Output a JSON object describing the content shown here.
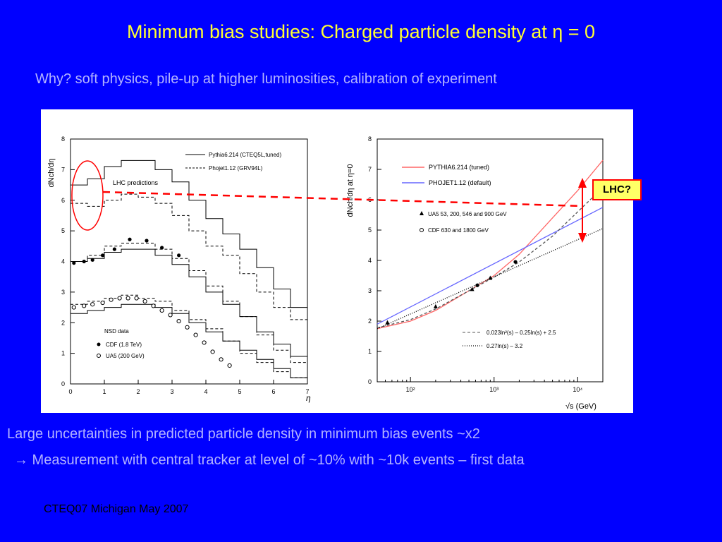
{
  "slide": {
    "title": "Minimum bias studies: Charged particle density at η = 0",
    "subtitle": "Why? soft physics, pile-up at higher luminosities, calibration of experiment",
    "bullet1": "Large uncertainties in predicted particle density in minimum bias events ~x2",
    "bullet2": "→ Measurement with central tracker at level of ~10% with ~10k events – first data",
    "footer": "CTEQ07 Michigan May 2007",
    "lhc_label": "LHC?",
    "colors": {
      "background": "#0000ff",
      "title": "#ffff33",
      "text": "#b3b3ff",
      "annotation": "#ff0000",
      "lhc_box": "#ffff66"
    }
  },
  "chart_data": [
    {
      "type": "line",
      "ylabel": "dNch/dη",
      "xlabel": "η",
      "xlim": [
        0,
        7
      ],
      "ylim": [
        0,
        8
      ],
      "xticks": [
        "0",
        "1",
        "2",
        "3",
        "4",
        "5",
        "6",
        "7"
      ],
      "yticks": [
        "0",
        "1",
        "2",
        "3",
        "4",
        "5",
        "6",
        "7",
        "8"
      ],
      "annotation": "LHC predictions",
      "legend_top": [
        "Pythia6.214 (CTEQ5L,tuned)",
        "Phojet1.12  (GRV94L)"
      ],
      "legend_bottom_title": "NSD data",
      "legend_bottom": [
        "CDF (1.8 TeV)",
        "UA5 (200 GeV)"
      ],
      "series": [
        {
          "name": "Pythia6.214 (CTEQ5L,tuned)",
          "energy": "LHC",
          "style": "solid",
          "x": [
            0,
            0.5,
            1,
            1.5,
            2,
            2.5,
            3,
            3.5,
            4,
            4.5,
            5,
            5.5,
            6,
            6.5,
            7
          ],
          "y": [
            6.5,
            6.7,
            7.1,
            7.3,
            7.3,
            7.0,
            6.6,
            6.0,
            5.4,
            4.9,
            4.4,
            3.8,
            3.1,
            2.5,
            2.3
          ]
        },
        {
          "name": "Phojet1.12  (GRV94L)",
          "energy": "LHC",
          "style": "dashed",
          "x": [
            0,
            0.5,
            1,
            1.5,
            2,
            2.5,
            3,
            3.5,
            4,
            4.5,
            5,
            5.5,
            6,
            6.5,
            7
          ],
          "y": [
            5.9,
            5.8,
            6.0,
            6.2,
            6.1,
            5.9,
            5.5,
            5.0,
            4.5,
            4.2,
            3.6,
            3.0,
            2.5,
            2.1,
            1.8
          ]
        },
        {
          "name": "Pythia6.214 (CTEQ5L,tuned)",
          "energy": "1.8 TeV",
          "style": "solid",
          "x": [
            0,
            0.5,
            1,
            1.5,
            2,
            2.5,
            3,
            3.5,
            4,
            4.5,
            5,
            5.5,
            6,
            6.5,
            7
          ],
          "y": [
            4.0,
            4.1,
            4.3,
            4.4,
            4.4,
            4.2,
            3.9,
            3.5,
            3.0,
            2.6,
            2.2,
            1.7,
            1.3,
            0.9,
            0.5
          ]
        },
        {
          "name": "Phojet1.12  (GRV94L)",
          "energy": "1.8 TeV",
          "style": "dashed",
          "x": [
            0,
            0.5,
            1,
            1.5,
            2,
            2.5,
            3,
            3.5,
            4,
            4.5,
            5,
            5.5,
            6,
            6.5,
            7
          ],
          "y": [
            4.0,
            4.2,
            4.5,
            4.6,
            4.6,
            4.4,
            4.1,
            3.7,
            3.2,
            2.7,
            2.2,
            1.6,
            1.1,
            0.7,
            0.4
          ]
        },
        {
          "name": "Pythia6.214 (CTEQ5L,tuned)",
          "energy": "200 GeV",
          "style": "solid",
          "x": [
            0,
            0.5,
            1,
            1.5,
            2,
            2.5,
            3,
            3.5,
            4,
            4.5,
            5,
            5.5,
            6,
            6.5,
            7
          ],
          "y": [
            2.3,
            2.4,
            2.5,
            2.6,
            2.6,
            2.5,
            2.3,
            2.0,
            1.7,
            1.4,
            1.1,
            0.8,
            0.5,
            0.2,
            0.05
          ]
        },
        {
          "name": "Phojet1.12  (GRV94L)",
          "energy": "200 GeV",
          "style": "dashed",
          "x": [
            0,
            0.5,
            1,
            1.5,
            2,
            2.5,
            3,
            3.5,
            4,
            4.5,
            5,
            5.5,
            6,
            6.5,
            7
          ],
          "y": [
            2.6,
            2.7,
            2.8,
            2.9,
            2.8,
            2.7,
            2.4,
            2.1,
            1.8,
            1.4,
            1.0,
            0.7,
            0.4,
            0.2,
            0.05
          ]
        },
        {
          "name": "CDF (1.8 TeV)",
          "style": "marker-filled",
          "x": [
            0.1,
            0.4,
            0.65,
            0.95,
            1.3,
            1.75,
            2.25,
            2.7,
            3.2
          ],
          "y": [
            3.95,
            4.0,
            4.05,
            4.2,
            4.4,
            4.72,
            4.68,
            4.45,
            4.2
          ]
        },
        {
          "name": "UA5 (200 GeV)",
          "style": "marker-open",
          "x": [
            0.1,
            0.4,
            0.65,
            0.95,
            1.2,
            1.45,
            1.7,
            1.95,
            2.2,
            2.45,
            2.7,
            2.95,
            3.2,
            3.45,
            3.7,
            3.95,
            4.2,
            4.45,
            4.7
          ],
          "y": [
            2.5,
            2.55,
            2.6,
            2.65,
            2.75,
            2.8,
            2.8,
            2.8,
            2.7,
            2.55,
            2.4,
            2.25,
            2.05,
            1.85,
            1.6,
            1.35,
            1.05,
            0.8,
            0.6
          ]
        }
      ]
    },
    {
      "type": "line",
      "ylabel": "dNch/dη  at  η=0",
      "xlabel": "√s (GeV)",
      "xscale": "log",
      "xlim": [
        40,
        20000
      ],
      "ylim": [
        0,
        8
      ],
      "xticks": [
        "10²",
        "10³",
        "10⁴"
      ],
      "xtick_values": [
        100,
        1000,
        10000
      ],
      "yticks": [
        "0",
        "1",
        "2",
        "3",
        "4",
        "5",
        "6",
        "7",
        "8"
      ],
      "legend_top": [
        "PYTHIA6.214 (tuned)",
        "PHOJET1.12 (default)"
      ],
      "legend_middle": [
        "UA5 53, 200, 546 and 900 GeV",
        "CDF 630 and 1800 GeV"
      ],
      "legend_bottom": [
        "0.023ln²(s) – 0.25ln(s) + 2.5",
        "0.27ln(s) – 3.2"
      ],
      "series": [
        {
          "name": "PYTHIA6.214 (tuned)",
          "color": "#ff6666",
          "style": "solid",
          "x": [
            40,
            100,
            200,
            500,
            1000,
            2000,
            5000,
            10000,
            20000
          ],
          "y": [
            1.75,
            2.0,
            2.35,
            3.0,
            3.5,
            4.2,
            5.4,
            6.3,
            7.3
          ]
        },
        {
          "name": "PHOJET1.12 (default)",
          "color": "#6666ff",
          "style": "solid",
          "x": [
            40,
            20000
          ],
          "y": [
            1.9,
            5.75
          ]
        },
        {
          "name": "0.023ln²(s) – 0.25ln(s) + 2.5",
          "style": "dashed",
          "x": [
            40,
            100,
            200,
            500,
            1000,
            2000,
            5000,
            10000,
            20000
          ],
          "y": [
            1.78,
            2.05,
            2.4,
            3.0,
            3.45,
            3.95,
            4.8,
            5.6,
            6.4
          ]
        },
        {
          "name": "0.27ln(s) – 3.2",
          "style": "dotted",
          "x": [
            40,
            20000
          ],
          "y": [
            1.75,
            5.05
          ]
        },
        {
          "name": "UA5 53, 200, 546 and 900 GeV",
          "style": "marker-triangle",
          "x": [
            53,
            200,
            546,
            900
          ],
          "y": [
            1.95,
            2.48,
            3.05,
            3.42
          ]
        },
        {
          "name": "CDF 630 and 1800 GeV",
          "style": "marker-circle",
          "x": [
            630,
            1800
          ],
          "y": [
            3.18,
            3.95
          ]
        }
      ]
    }
  ]
}
